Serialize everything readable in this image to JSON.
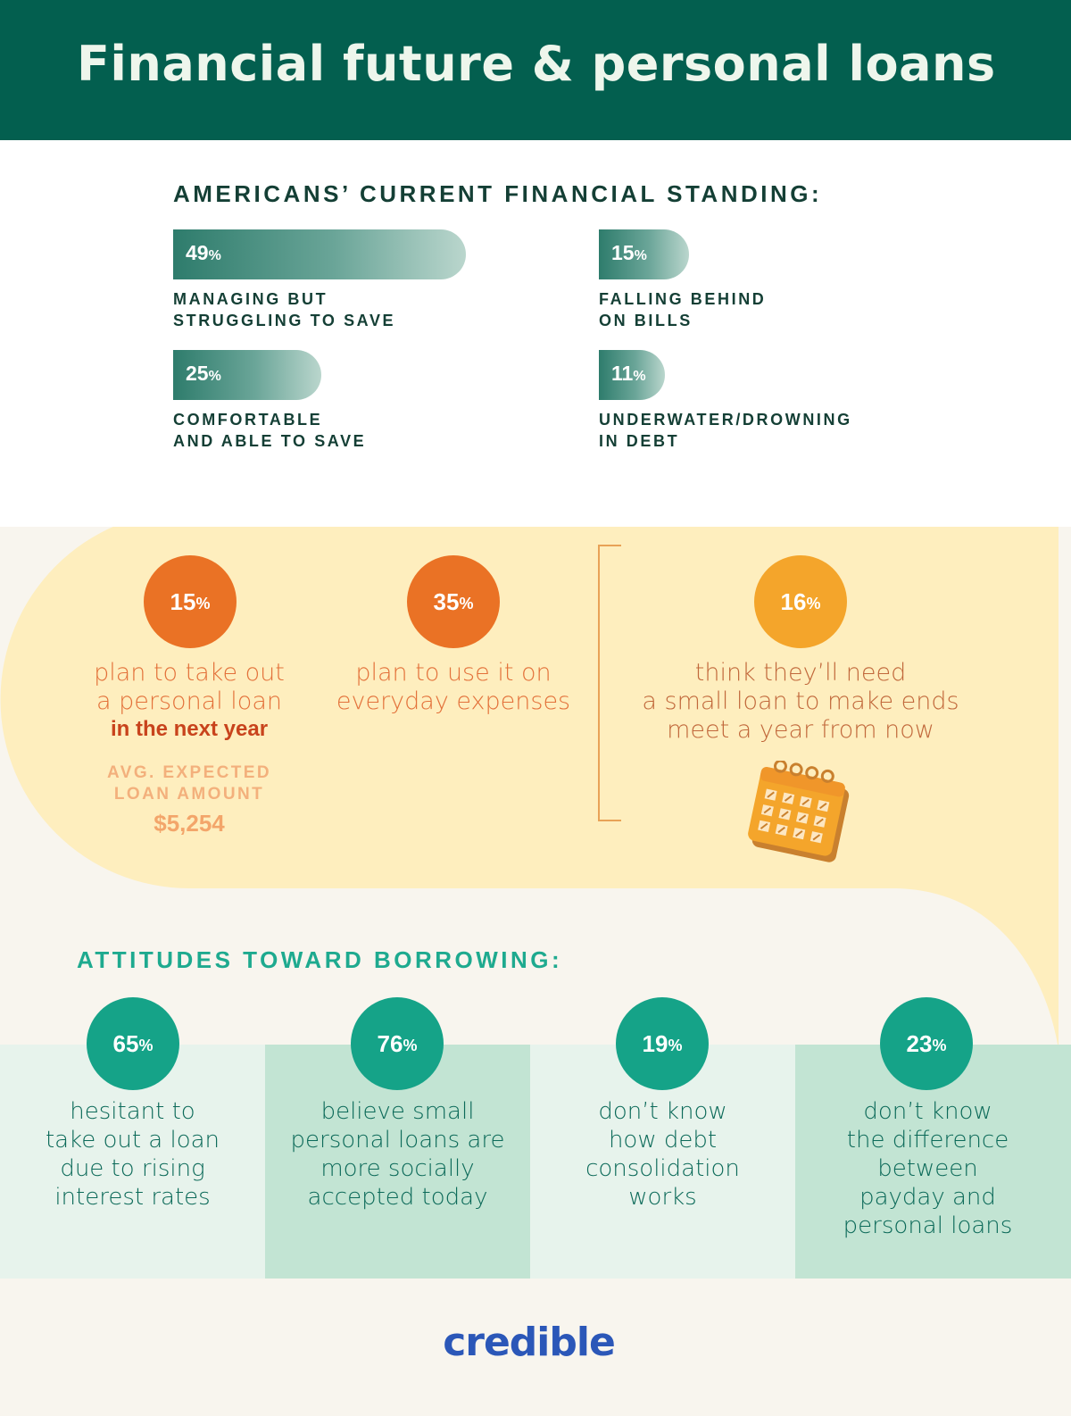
{
  "header": {
    "title": "Financial future & personal loans"
  },
  "standing": {
    "title": "AMERICANS’ CURRENT FINANCIAL STANDING:",
    "items": [
      {
        "value": "49",
        "unit": "%",
        "fraction": 0.49,
        "label_line1": "MANAGING BUT",
        "label_line2": "STRUGGLING TO SAVE"
      },
      {
        "value": "15",
        "unit": "%",
        "fraction": 0.15,
        "label_line1": "FALLING BEHIND",
        "label_line2": "ON BILLS"
      },
      {
        "value": "25",
        "unit": "%",
        "fraction": 0.25,
        "label_line1": "COMFORTABLE",
        "label_line2": "AND ABLE TO SAVE"
      },
      {
        "value": "11",
        "unit": "%",
        "fraction": 0.11,
        "label_line1": "UNDERWATER/DROWNING",
        "label_line2": "IN DEBT"
      }
    ]
  },
  "loans": {
    "stat1": {
      "value": "15",
      "unit": "%",
      "line1": "plan to take out",
      "line2": "a personal loan",
      "bold": "in the next year",
      "avg_line1": "AVG. EXPECTED",
      "avg_line2": "LOAN AMOUNT",
      "avg_amount": "$5,254"
    },
    "stat2": {
      "value": "35",
      "unit": "%",
      "line1": "plan to use it on",
      "line2": "everyday expenses"
    },
    "stat3": {
      "value": "16",
      "unit": "%",
      "line1": "think they’ll need",
      "line2": "a small loan to make ends",
      "line3": "meet a year from now",
      "icon": "calendar-icon"
    }
  },
  "attitudes": {
    "title": "ATTITUDES TOWARD BORROWING:",
    "items": [
      {
        "value": "65",
        "unit": "%",
        "lines": [
          "hesitant to",
          "take out a loan",
          "due to rising",
          "interest rates"
        ]
      },
      {
        "value": "76",
        "unit": "%",
        "lines": [
          "believe small",
          "personal loans are",
          "more socially",
          "accepted today"
        ]
      },
      {
        "value": "19",
        "unit": "%",
        "lines": [
          "don’t know",
          "how debt",
          "consolidation",
          "works"
        ]
      },
      {
        "value": "23",
        "unit": "%",
        "lines": [
          "don’t know",
          "the difference",
          "between",
          "payday and",
          "personal loans"
        ]
      }
    ]
  },
  "footer": {
    "logo": "credible"
  },
  "colors": {
    "header_green": "#035f4f",
    "orange": "#ea7225",
    "amber": "#f4a52b",
    "teal": "#15a388",
    "yellow_band": "#feeebe",
    "logo_blue": "#2b57b8"
  }
}
